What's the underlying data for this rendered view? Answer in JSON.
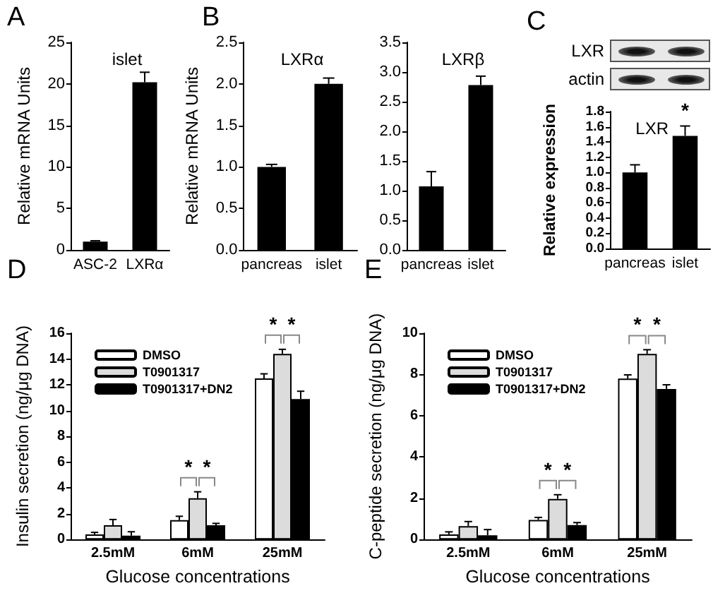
{
  "chart_data": [
    {
      "type": "bar",
      "title": "islet",
      "ylabel": "Relative mRNA Units",
      "categories": [
        "ASC-2",
        "LXRα"
      ],
      "values": [
        1.0,
        20.2
      ],
      "errors": [
        0.1,
        1.2
      ],
      "color": "#000000",
      "ylim": [
        0,
        25
      ],
      "yticks": [
        0,
        5,
        10,
        15,
        20,
        25
      ],
      "annotations": [
        "A"
      ]
    },
    {
      "type": "bar",
      "title": "LXRα",
      "ylabel": "Relative mRNA Units",
      "categories": [
        "pancreas",
        "islet"
      ],
      "values": [
        1.0,
        2.0
      ],
      "errors": [
        0.03,
        0.07
      ],
      "color": "#000000",
      "ylim": [
        0,
        2.5
      ],
      "yticks": [
        {
          "value": 0,
          "label": "0.0"
        },
        {
          "value": 0.5,
          "label": "0.5"
        },
        {
          "value": 1,
          "label": "1.0"
        },
        {
          "value": 1.5,
          "label": "1.5"
        },
        {
          "value": 2,
          "label": "2.0"
        },
        {
          "value": 2.5,
          "label": "2.5"
        }
      ],
      "annotations": [
        "B"
      ]
    },
    {
      "type": "bar",
      "title": "LXRβ",
      "categories": [
        "pancreas",
        "islet"
      ],
      "values": [
        1.07,
        2.78
      ],
      "errors": [
        0.25,
        0.15
      ],
      "color": "#000000",
      "ylim": [
        0,
        3.5
      ],
      "yticks": [
        {
          "value": 0,
          "label": "0.0"
        },
        {
          "value": 0.5,
          "label": "0.5"
        },
        {
          "value": 1,
          "label": "1.0"
        },
        {
          "value": 1.5,
          "label": "1.5"
        },
        {
          "value": 2,
          "label": "2.0"
        },
        {
          "value": 2.5,
          "label": "2.5"
        },
        {
          "value": 3,
          "label": "3.0"
        },
        {
          "value": 3.5,
          "label": "3.5"
        }
      ]
    },
    {
      "type": "bar",
      "title": "LXR",
      "ylabel": "Relative expression",
      "categories": [
        "pancreas",
        "islet"
      ],
      "values": [
        1.0,
        1.48
      ],
      "errors": [
        0.1,
        0.13
      ],
      "color": "#000000",
      "ylim": [
        0,
        1.8
      ],
      "yticks": [
        {
          "value": 0,
          "label": "0.0"
        },
        {
          "value": 0.2,
          "label": "0.2"
        },
        {
          "value": 0.4,
          "label": "0.4"
        },
        {
          "value": 0.6,
          "label": "0.6"
        },
        {
          "value": 0.8,
          "label": "0.8"
        },
        {
          "value": 1,
          "label": "1.0"
        },
        {
          "value": 1.2,
          "label": "1.2"
        },
        {
          "value": 1.4,
          "label": "1.4"
        },
        {
          "value": 1.6,
          "label": "1.6"
        },
        {
          "value": 1.8,
          "label": "1.8"
        }
      ],
      "annotations": [
        "C",
        "LXR",
        "actin",
        "*"
      ]
    },
    {
      "type": "bar",
      "xlabel": "Glucose concentrations",
      "ylabel": "Insulin secretion (ng/μg DNA)",
      "categories": [
        "2.5mM",
        "6mM",
        "25mM"
      ],
      "legend": "top left",
      "ylim": [
        0,
        16
      ],
      "yticks": [
        0,
        2,
        4,
        6,
        8,
        10,
        12,
        14,
        16
      ],
      "annotations": [
        "D",
        "*",
        "*",
        "*",
        "*"
      ],
      "series": [
        {
          "name": "DMSO",
          "color": "#ffffff",
          "values": [
            0.4,
            1.5,
            12.5
          ],
          "errors": [
            0.15,
            0.3,
            0.35
          ]
        },
        {
          "name": "T0901317",
          "color": "#dcdcdc",
          "values": [
            1.1,
            3.2,
            14.4
          ],
          "errors": [
            0.45,
            0.5,
            0.35
          ]
        },
        {
          "name": "T0901317+DN2",
          "color": "#000000",
          "values": [
            0.3,
            1.1,
            10.9
          ],
          "errors": [
            0.3,
            0.15,
            0.6
          ]
        }
      ]
    },
    {
      "type": "bar",
      "xlabel": "Glucose concentrations",
      "ylabel": "C-peptide secretion (ng/μg DNA)",
      "categories": [
        "2.5mM",
        "6mM",
        "25mM"
      ],
      "legend": "top left",
      "ylim": [
        0,
        10
      ],
      "yticks": [
        0,
        2,
        4,
        6,
        8,
        10
      ],
      "annotations": [
        "E",
        "*",
        "*",
        "*",
        "*"
      ],
      "series": [
        {
          "name": "DMSO",
          "color": "#ffffff",
          "values": [
            0.25,
            0.95,
            7.8
          ],
          "errors": [
            0.12,
            0.12,
            0.18
          ]
        },
        {
          "name": "T0901317",
          "color": "#dcdcdc",
          "values": [
            0.65,
            1.97,
            9.0
          ],
          "errors": [
            0.22,
            0.2,
            0.2
          ]
        },
        {
          "name": "T0901317+DN2",
          "color": "#000000",
          "values": [
            0.2,
            0.7,
            7.3
          ],
          "errors": [
            0.28,
            0.12,
            0.2
          ]
        }
      ]
    }
  ]
}
